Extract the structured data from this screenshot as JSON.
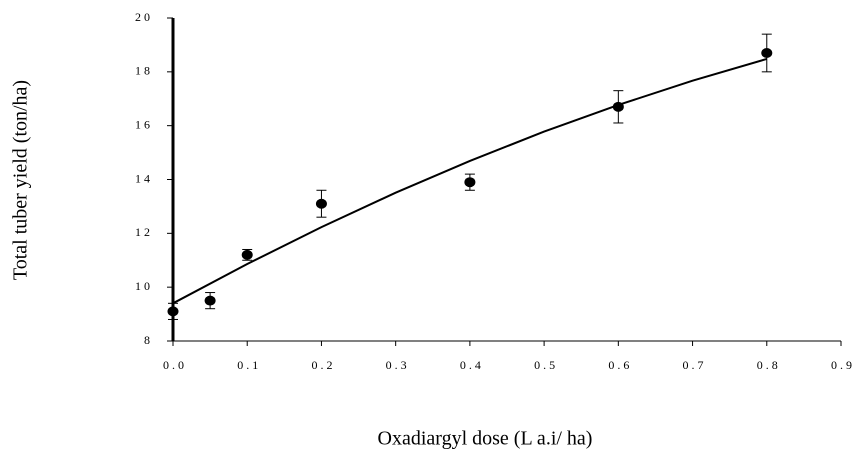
{
  "chart_data": {
    "type": "scatter",
    "x_label": "Oxadiargyl dose (L a.i/ ha)",
    "y_label": "Total tuber yield (ton/ha)",
    "x": [
      0,
      0.05,
      0.1,
      0.2,
      0.4,
      0.6,
      0.8
    ],
    "values": [
      9.1,
      9.5,
      11.2,
      13.1,
      13.9,
      16.7,
      18.7
    ],
    "errors": [
      0.3,
      0.3,
      0.2,
      0.5,
      0.3,
      0.6,
      0.7
    ],
    "color": "#000000",
    "trendline": {
      "x": [
        0,
        0.1,
        0.2,
        0.3,
        0.4,
        0.5,
        0.6,
        0.7,
        0.8
      ],
      "values": [
        9.4,
        10.86,
        12.23,
        13.51,
        14.69,
        15.78,
        16.77,
        17.67,
        18.48
      ]
    },
    "xlim": [
      0,
      0.9
    ],
    "xticks": [
      {
        "value": 0,
        "label": "0.0"
      },
      0.1,
      0.2,
      0.3,
      0.4,
      0.5,
      0.6,
      0.7,
      0.8,
      0.9
    ],
    "ylim": [
      8,
      20
    ],
    "yticks": [
      8,
      10,
      12,
      14,
      16,
      18,
      20
    ],
    "grid": false
  }
}
